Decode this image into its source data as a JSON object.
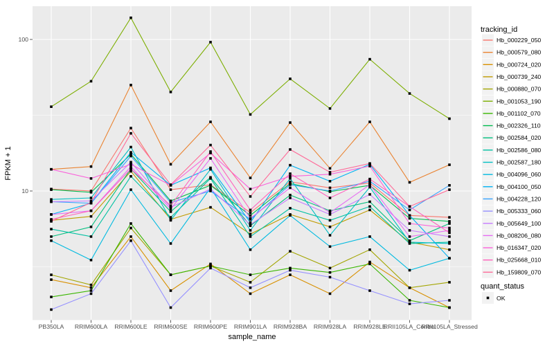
{
  "figure": {
    "background": "#FFFFFF",
    "panel_background": "#EBEBEB",
    "grid_color": "#FFFFFF",
    "tick_color": "#333333",
    "marker_color": "#000000",
    "legend_key_background": "#F2F2F2"
  },
  "axes": {
    "y_tick_labels": [
      "100",
      "10"
    ]
  },
  "legend": {
    "tracking_title": "tracking_id",
    "quant_title": "quant_status",
    "quant_ok_label": "OK"
  },
  "chart_data": {
    "type": "line",
    "title": "",
    "xlabel": "sample_name",
    "ylabel": "FPKM + 1",
    "y_scale": "log10",
    "ylim": [
      1.35,
      170
    ],
    "y_major_breaks": [
      10,
      100
    ],
    "y_minor_breaks": [
      3.162,
      31.62
    ],
    "grid": true,
    "legend_position": "right",
    "marker": "black-square",
    "quant_status_values": [
      "OK"
    ],
    "categories": [
      "PB350LA",
      "RRIM600LA",
      "RRIM600LE",
      "RRIM600SE",
      "RRIM600PE",
      "RRIM901LA",
      "RRIM928BA",
      "RRIM928LA",
      "RRIM928LE",
      "RRII105LA_Control",
      "RRII105LA_Stressed"
    ],
    "series": [
      {
        "name": "Hb_000229_050",
        "color": "#F8766D",
        "values": [
          10.3,
          10.0,
          26.0,
          10.2,
          11.0,
          7.2,
          11.5,
          10.5,
          11.3,
          6.9,
          6.7
        ]
      },
      {
        "name": "Hb_000579_080",
        "color": "#EA8331",
        "values": [
          13.9,
          14.5,
          50.0,
          15.0,
          28.6,
          12.2,
          28.3,
          14.1,
          28.6,
          11.4,
          14.9
        ]
      },
      {
        "name": "Hb_000724_020",
        "color": "#D89000",
        "values": [
          2.6,
          2.3,
          5.0,
          2.2,
          3.3,
          2.1,
          2.8,
          2.1,
          3.4,
          2.3,
          1.7
        ]
      },
      {
        "name": "Hb_000739_240",
        "color": "#C09B00",
        "values": [
          6.4,
          6.8,
          13.5,
          6.5,
          7.8,
          5.2,
          7.0,
          5.8,
          7.5,
          4.6,
          4.1
        ]
      },
      {
        "name": "Hb_000880_070",
        "color": "#A3A500",
        "values": [
          2.8,
          2.4,
          5.7,
          2.8,
          3.2,
          2.5,
          4.0,
          3.1,
          4.1,
          2.3,
          2.5
        ]
      },
      {
        "name": "Hb_001053_190",
        "color": "#7CAE00",
        "values": [
          36.0,
          53.0,
          139.0,
          45.0,
          96.0,
          32.0,
          55.0,
          35.0,
          74.0,
          44.0,
          30.0
        ]
      },
      {
        "name": "Hb_001102_070",
        "color": "#39B600",
        "values": [
          2.0,
          2.2,
          6.1,
          2.8,
          3.2,
          2.8,
          3.1,
          2.9,
          3.3,
          1.9,
          1.7
        ]
      },
      {
        "name": "Hb_002326_110",
        "color": "#00BB4E",
        "values": [
          10.2,
          9.8,
          17.5,
          8.6,
          10.9,
          6.9,
          11.2,
          9.9,
          10.9,
          6.6,
          6.3
        ]
      },
      {
        "name": "Hb_002584_020",
        "color": "#00BF7D",
        "values": [
          5.0,
          5.8,
          14.0,
          7.3,
          12.3,
          5.9,
          9.4,
          7.4,
          8.5,
          4.7,
          6.1
        ]
      },
      {
        "name": "Hb_002586_080",
        "color": "#00C1A2",
        "values": [
          5.6,
          5.0,
          12.5,
          6.7,
          12.1,
          5.0,
          7.7,
          6.4,
          7.9,
          4.5,
          4.6
        ]
      },
      {
        "name": "Hb_002587_180",
        "color": "#00BFC4",
        "values": [
          8.8,
          9.0,
          19.5,
          6.4,
          13.9,
          5.5,
          12.1,
          5.1,
          10.6,
          4.6,
          4.5
        ]
      },
      {
        "name": "Hb_004096_060",
        "color": "#00BAE0",
        "values": [
          4.7,
          3.5,
          10.2,
          4.5,
          10.5,
          4.1,
          6.9,
          4.3,
          5.0,
          3.0,
          3.6
        ]
      },
      {
        "name": "Hb_004100_050",
        "color": "#00B2F3",
        "values": [
          7.0,
          8.3,
          18.0,
          10.9,
          14.2,
          6.2,
          14.8,
          11.6,
          15.0,
          6.9,
          3.6
        ]
      },
      {
        "name": "Hb_004228_120",
        "color": "#35A2FF",
        "values": [
          8.5,
          8.3,
          17.0,
          8.4,
          10.0,
          6.5,
          11.0,
          10.0,
          11.6,
          7.5,
          10.9
        ]
      },
      {
        "name": "Hb_005333_060",
        "color": "#9590FF",
        "values": [
          1.65,
          2.1,
          4.7,
          1.7,
          3.1,
          2.3,
          3.0,
          2.7,
          2.2,
          1.8,
          1.9
        ]
      },
      {
        "name": "Hb_005649_100",
        "color": "#C77CFF",
        "values": [
          8.5,
          8.6,
          15.5,
          7.8,
          10.3,
          6.0,
          9.0,
          7.0,
          9.5,
          5.5,
          5.0
        ]
      },
      {
        "name": "Hb_008206_080",
        "color": "#E76BF3",
        "values": [
          7.0,
          7.4,
          14.5,
          7.6,
          16.4,
          6.6,
          10.5,
          7.2,
          11.0,
          5.0,
          5.5
        ]
      },
      {
        "name": "Hb_016347_020",
        "color": "#FA62DB",
        "values": [
          13.9,
          12.1,
          15.0,
          10.9,
          17.8,
          10.3,
          12.5,
          12.9,
          14.6,
          6.1,
          5.7
        ]
      },
      {
        "name": "Hb_025668_010",
        "color": "#FF62BC",
        "values": [
          6.5,
          7.4,
          14.0,
          8.0,
          18.2,
          7.5,
          13.0,
          9.0,
          12.0,
          7.9,
          5.3
        ]
      },
      {
        "name": "Hb_159809_070",
        "color": "#FF6A98",
        "values": [
          6.3,
          8.4,
          24.0,
          11.0,
          20.1,
          9.2,
          18.8,
          13.3,
          15.2,
          7.9,
          10.2
        ]
      }
    ]
  }
}
